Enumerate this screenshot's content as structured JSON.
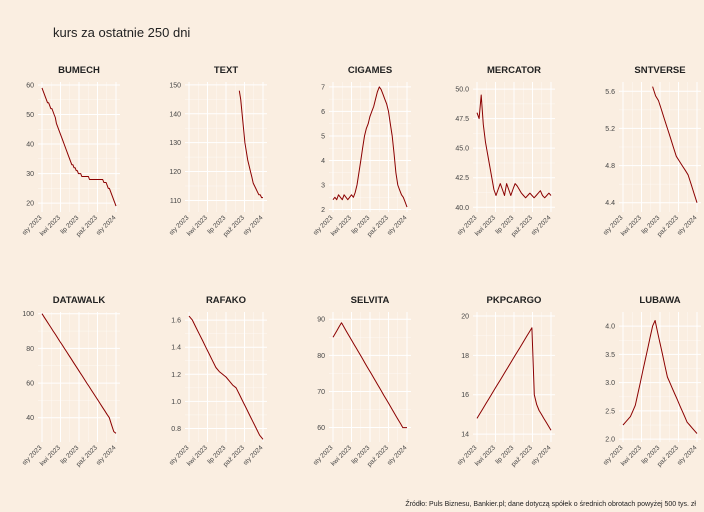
{
  "title": "kurs za ostatnie 250 dni",
  "caption": "Źródło: Puls Biznesu, Bankier.pl; dane dotyczą spółek o średnich obrotach powyżej 500 tys. zł",
  "colors": {
    "background": "#faeee1",
    "line": "#8b0000",
    "grid": "#ffffff"
  },
  "x_tick_labels": [
    "sty 2023",
    "kwi 2023",
    "lip 2023",
    "paź 2023",
    "sty 2024"
  ],
  "chart_data": [
    {
      "type": "line",
      "title": "BUMECH",
      "yticks": [
        "20",
        "30",
        "40",
        "50",
        "60"
      ],
      "ylim": [
        17,
        61
      ],
      "values": [
        59,
        58,
        57,
        56,
        55,
        54,
        54,
        53,
        52,
        52,
        51,
        50,
        49,
        47,
        46,
        45,
        44,
        43,
        42,
        41,
        40,
        39,
        38,
        37,
        36,
        35,
        34,
        33,
        33,
        32,
        32,
        31,
        31,
        30,
        30,
        30,
        29,
        29,
        29,
        29,
        29,
        29,
        29,
        28,
        28,
        28,
        28,
        28,
        28,
        28,
        28,
        28,
        28,
        28,
        28,
        28,
        27,
        27,
        27,
        26,
        25,
        25,
        24,
        23,
        22,
        21,
        20,
        19
      ]
    },
    {
      "type": "line",
      "title": "TEXT",
      "yticks": [
        "110",
        "120",
        "130",
        "140",
        "150"
      ],
      "ylim": [
        106,
        151
      ],
      "values": [
        148,
        145,
        140,
        135,
        130,
        127,
        124,
        122,
        120,
        118,
        116,
        115,
        114,
        113,
        112,
        112,
        111,
        111
      ]
    },
    {
      "type": "line",
      "title": "CIGAMES",
      "yticks": [
        "2",
        "3",
        "4",
        "5",
        "6",
        "7"
      ],
      "ylim": [
        1.9,
        7.2
      ],
      "values": [
        2.4,
        2.5,
        2.4,
        2.6,
        2.5,
        2.4,
        2.6,
        2.5,
        2.4,
        2.5,
        2.6,
        2.5,
        2.7,
        3.0,
        3.5,
        4.0,
        4.5,
        5.0,
        5.3,
        5.5,
        5.8,
        6.0,
        6.2,
        6.5,
        6.8,
        7.0,
        6.9,
        6.7,
        6.5,
        6.3,
        6.0,
        5.5,
        5.0,
        4.3,
        3.5,
        3.0,
        2.8,
        2.6,
        2.5,
        2.3,
        2.1
      ]
    },
    {
      "type": "line",
      "title": "MERCATOR",
      "yticks": [
        "40.0",
        "42.5",
        "45.0",
        "47.5",
        "50.0"
      ],
      "ylim": [
        39.6,
        50.6
      ],
      "values": [
        48.0,
        47.5,
        49.5,
        47.0,
        45.5,
        44.5,
        43.5,
        42.5,
        41.5,
        41.0,
        41.5,
        42.0,
        41.5,
        41.0,
        42.0,
        41.5,
        41.0,
        41.5,
        42.0,
        41.8,
        41.5,
        41.2,
        41.0,
        40.8,
        41.0,
        41.2,
        41.0,
        40.8,
        41.0,
        41.2,
        41.4,
        41.0,
        40.8,
        41.0,
        41.2,
        41.0
      ]
    },
    {
      "type": "line",
      "title": "SNTVERSE",
      "yticks": [
        "4.4",
        "4.8",
        "5.2",
        "5.6"
      ],
      "ylim": [
        4.3,
        5.7
      ],
      "values": [
        5.65,
        5.55,
        5.5,
        5.4,
        5.3,
        5.2,
        5.1,
        5.0,
        4.9,
        4.85,
        4.8,
        4.75,
        4.7,
        4.6,
        4.5,
        4.4
      ]
    },
    {
      "type": "line",
      "title": "DATAWALK",
      "yticks": [
        "40",
        "60",
        "80",
        "100"
      ],
      "ylim": [
        26,
        101
      ],
      "values": [
        100,
        98,
        96,
        94,
        92,
        90,
        88,
        86,
        84,
        82,
        80,
        78,
        76,
        74,
        72,
        70,
        68,
        66,
        64,
        62,
        60,
        58,
        56,
        54,
        52,
        50,
        48,
        46,
        44,
        42,
        40,
        36,
        32,
        31
      ]
    },
    {
      "type": "line",
      "title": "RAFAKO",
      "yticks": [
        "0.8",
        "1.0",
        "1.2",
        "1.4",
        "1.6"
      ],
      "ylim": [
        0.7,
        1.66
      ],
      "values": [
        1.63,
        1.6,
        1.55,
        1.5,
        1.45,
        1.4,
        1.35,
        1.3,
        1.25,
        1.22,
        1.2,
        1.18,
        1.15,
        1.12,
        1.1,
        1.05,
        1.0,
        0.95,
        0.9,
        0.85,
        0.8,
        0.75,
        0.72
      ]
    },
    {
      "type": "line",
      "title": "SELVITA",
      "yticks": [
        "60",
        "70",
        "80",
        "90"
      ],
      "ylim": [
        56,
        92
      ],
      "values": [
        85,
        86,
        87,
        88,
        89,
        88,
        87,
        86,
        85,
        84,
        83,
        82,
        81,
        80,
        79,
        78,
        77,
        76,
        75,
        74,
        73,
        72,
        71,
        70,
        69,
        68,
        67,
        66,
        65,
        64,
        63,
        62,
        61,
        60,
        60,
        60
      ]
    },
    {
      "type": "line",
      "title": "PKPCARGO",
      "yticks": [
        "14",
        "16",
        "18",
        "20"
      ],
      "ylim": [
        13.6,
        20.2
      ],
      "values": [
        14.8,
        15.0,
        15.2,
        15.4,
        15.6,
        15.8,
        16.0,
        16.2,
        16.4,
        16.6,
        16.8,
        17.0,
        17.2,
        17.4,
        17.6,
        17.8,
        18.0,
        18.2,
        18.4,
        18.6,
        18.8,
        19.0,
        19.2,
        19.4,
        16.0,
        15.5,
        15.2,
        15.0,
        14.8,
        14.6,
        14.4,
        14.2
      ]
    },
    {
      "type": "line",
      "title": "LUBAWA",
      "yticks": [
        "2.0",
        "2.5",
        "3.0",
        "3.5",
        "4.0"
      ],
      "ylim": [
        1.95,
        4.25
      ],
      "values": [
        2.25,
        2.3,
        2.35,
        2.4,
        2.5,
        2.6,
        2.8,
        3.0,
        3.2,
        3.4,
        3.6,
        3.8,
        4.0,
        4.1,
        3.9,
        3.7,
        3.5,
        3.3,
        3.1,
        3.0,
        2.9,
        2.8,
        2.7,
        2.6,
        2.5,
        2.4,
        2.3,
        2.25,
        2.2,
        2.15,
        2.1
      ]
    }
  ]
}
